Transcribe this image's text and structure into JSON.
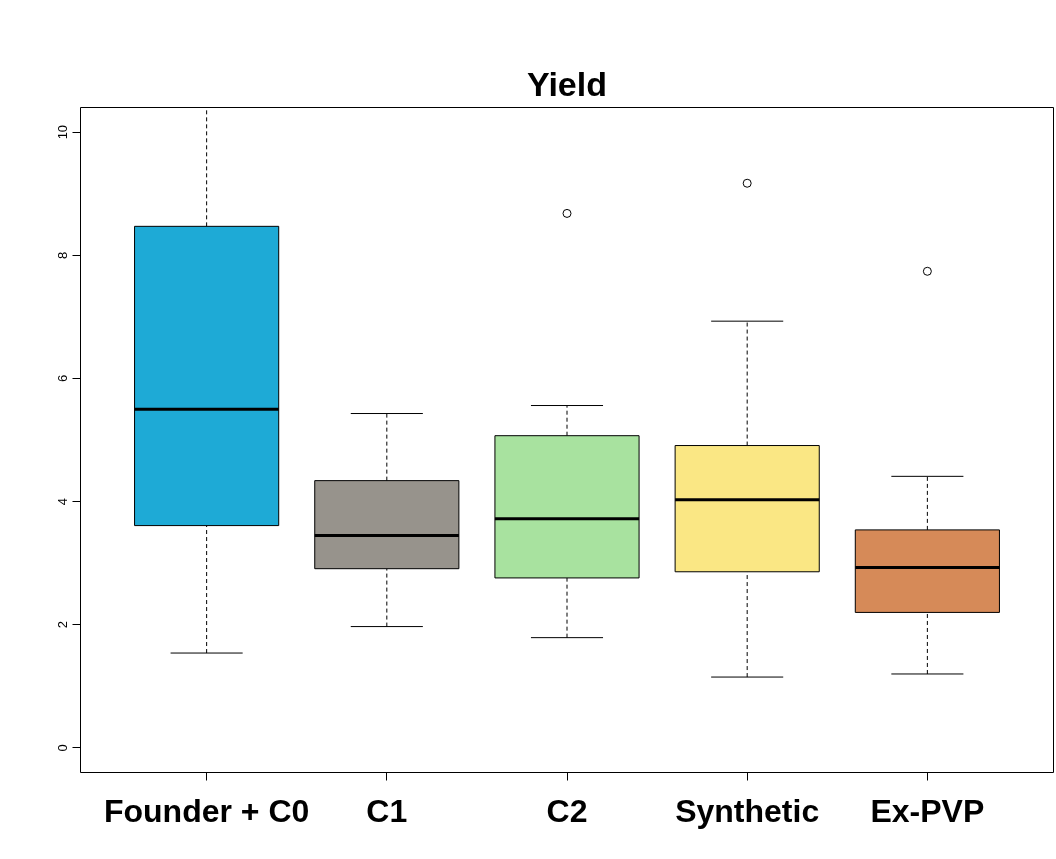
{
  "chart_data": {
    "type": "box",
    "title": "Yield",
    "categories": [
      "Founder + C0",
      "C1",
      "C2",
      "Synthetic",
      "Ex-PVP"
    ],
    "colors": [
      "#1eaad6",
      "#97938c",
      "#a8e29f",
      "#fae784",
      "#d68a58"
    ],
    "boxes": [
      {
        "low": 1.54,
        "q1": 3.61,
        "median": 5.5,
        "q3": 8.47,
        "high": 10.4
      },
      {
        "low": 1.97,
        "q1": 2.91,
        "median": 3.45,
        "q3": 4.34,
        "high": 5.43
      },
      {
        "low": 1.79,
        "q1": 2.76,
        "median": 3.72,
        "q3": 5.07,
        "high": 5.56,
        "outliers": [
          8.68
        ]
      },
      {
        "low": 1.15,
        "q1": 2.86,
        "median": 4.03,
        "q3": 4.91,
        "high": 6.93,
        "outliers": [
          9.17
        ]
      },
      {
        "low": 1.2,
        "q1": 2.2,
        "median": 2.93,
        "q3": 3.54,
        "high": 4.41,
        "outliers": [
          7.74
        ]
      }
    ],
    "ylim": [
      -0.4,
      10.4
    ],
    "yticks": [
      0,
      2,
      4,
      6,
      8,
      10
    ],
    "grid": false
  }
}
